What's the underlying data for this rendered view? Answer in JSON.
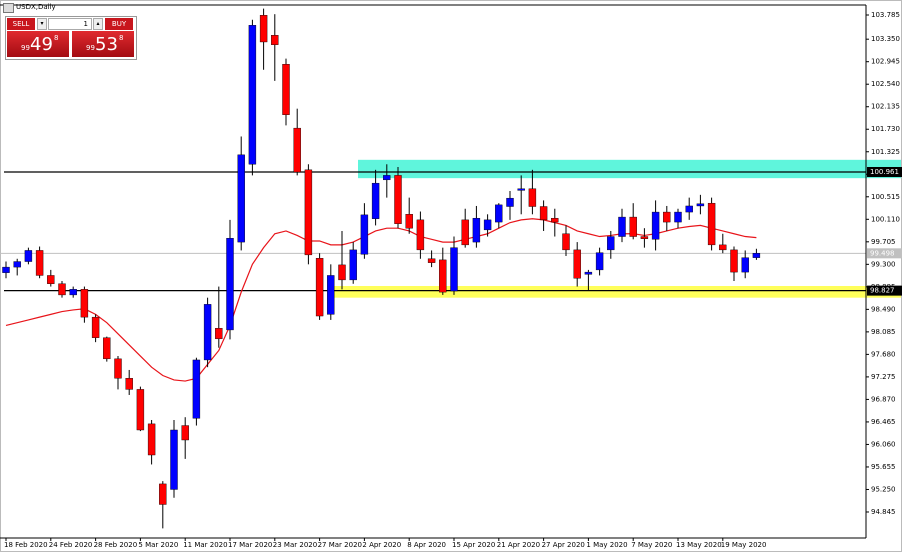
{
  "chart_data": {
    "type": "candlestick",
    "widget": {
      "title": "USDX,Daily",
      "sell": "SELL",
      "buy": "BUY",
      "volume": "1",
      "sell_price": [
        "99",
        "49",
        "8"
      ],
      "buy_price": [
        "99",
        "53",
        "8"
      ]
    },
    "categories": [
      "18 Feb 2020",
      null,
      null,
      null,
      "24 Feb 2020",
      null,
      null,
      null,
      "28 Feb 2020",
      null,
      null,
      null,
      "5 Mar 2020",
      null,
      null,
      null,
      "11 Mar 2020",
      null,
      null,
      null,
      "17 Mar 2020",
      null,
      null,
      null,
      "23 Mar 2020",
      null,
      null,
      null,
      "27 Mar 2020",
      null,
      null,
      null,
      "2 Apr 2020",
      null,
      null,
      null,
      "8 Apr 2020",
      null,
      null,
      null,
      "15 Apr 2020",
      null,
      null,
      null,
      "21 Apr 2020",
      null,
      null,
      null,
      "27 Apr 2020",
      null,
      null,
      null,
      "1 May 2020",
      null,
      null,
      null,
      "7 May 2020",
      null,
      null,
      null,
      "13 May 2020",
      null,
      null,
      null,
      "19 May 2020",
      null,
      null,
      null
    ],
    "open": [
      99.15,
      99.25,
      99.35,
      99.55,
      99.1,
      98.95,
      98.75,
      98.85,
      98.35,
      97.98,
      97.6,
      97.25,
      97.05,
      96.43,
      95.35,
      95.25,
      96.4,
      96.53,
      97.58,
      98.15,
      98.12,
      99.7,
      101.1,
      103.78,
      103.42,
      102.9,
      101.75,
      101.0,
      99.41,
      98.4,
      99.29,
      99.02,
      99.48,
      100.12,
      100.82,
      100.9,
      100.2,
      100.1,
      99.4,
      99.38,
      98.82,
      100.1,
      99.7,
      99.92,
      100.06,
      100.34,
      100.63,
      100.66,
      100.34,
      100.13,
      99.85,
      99.56,
      99.12,
      99.2,
      99.56,
      99.8,
      100.15,
      99.8,
      99.75,
      100.24,
      100.06,
      100.24,
      100.35,
      100.4,
      99.65,
      99.56,
      99.16,
      99.42
    ],
    "high": [
      99.35,
      99.4,
      99.6,
      99.62,
      99.2,
      99.0,
      98.9,
      98.9,
      98.4,
      98.0,
      97.65,
      97.4,
      97.1,
      96.5,
      95.4,
      96.5,
      96.55,
      97.62,
      98.7,
      98.9,
      100.1,
      101.6,
      103.7,
      103.9,
      103.8,
      103.0,
      102.1,
      101.1,
      99.5,
      99.3,
      99.9,
      99.7,
      100.4,
      101.0,
      101.1,
      101.05,
      100.5,
      100.25,
      99.55,
      99.6,
      99.8,
      100.3,
      100.35,
      100.2,
      100.4,
      100.62,
      100.9,
      101.0,
      100.45,
      100.3,
      100.0,
      99.7,
      99.2,
      99.6,
      99.9,
      100.3,
      100.4,
      99.95,
      100.45,
      100.35,
      100.3,
      100.5,
      100.55,
      100.5,
      99.85,
      99.62,
      99.55,
      99.58
    ],
    "low": [
      99.05,
      99.1,
      99.3,
      99.05,
      98.9,
      98.7,
      98.7,
      98.25,
      97.9,
      97.55,
      97.05,
      96.95,
      96.3,
      95.7,
      94.55,
      95.1,
      95.8,
      96.4,
      97.45,
      97.8,
      97.95,
      99.55,
      100.9,
      102.8,
      102.6,
      101.8,
      100.9,
      99.3,
      98.3,
      98.3,
      98.85,
      98.95,
      99.4,
      100.0,
      100.5,
      99.95,
      99.85,
      99.4,
      99.25,
      98.75,
      98.75,
      99.6,
      99.6,
      99.8,
      99.95,
      100.1,
      100.2,
      100.2,
      99.9,
      99.8,
      99.45,
      98.9,
      98.82,
      99.1,
      99.4,
      99.7,
      99.75,
      99.6,
      99.55,
      99.9,
      99.95,
      100.1,
      100.2,
      99.55,
      99.5,
      99.0,
      99.05,
      99.38
    ],
    "close": [
      99.25,
      99.35,
      99.55,
      99.1,
      98.95,
      98.75,
      98.85,
      98.35,
      97.98,
      97.6,
      97.25,
      97.05,
      96.32,
      95.87,
      94.98,
      96.32,
      96.14,
      97.58,
      98.58,
      97.96,
      99.77,
      101.27,
      103.6,
      103.3,
      103.25,
      101.99,
      100.96,
      99.47,
      98.37,
      99.1,
      99.02,
      99.56,
      100.19,
      100.76,
      100.9,
      100.03,
      99.95,
      99.56,
      99.33,
      98.8,
      99.6,
      99.65,
      100.13,
      100.1,
      100.37,
      100.49,
      100.66,
      100.34,
      100.1,
      100.06,
      99.56,
      99.05,
      99.16,
      99.51,
      99.8,
      100.15,
      99.8,
      99.76,
      100.24,
      100.06,
      100.24,
      100.35,
      100.39,
      99.65,
      99.56,
      99.16,
      99.42,
      99.5
    ],
    "ma": [
      98.2,
      98.25,
      98.3,
      98.35,
      98.4,
      98.45,
      98.48,
      98.5,
      98.4,
      98.25,
      98.05,
      97.85,
      97.65,
      97.45,
      97.3,
      97.22,
      97.2,
      97.25,
      97.5,
      97.75,
      98.2,
      98.8,
      99.3,
      99.6,
      99.85,
      99.9,
      99.82,
      99.72,
      99.72,
      99.65,
      99.65,
      99.7,
      99.8,
      99.9,
      99.95,
      99.95,
      99.9,
      99.8,
      99.75,
      99.7,
      99.7,
      99.75,
      99.8,
      99.85,
      99.95,
      100.05,
      100.1,
      100.12,
      100.1,
      100.05,
      100.0,
      99.9,
      99.85,
      99.8,
      99.82,
      99.85,
      99.85,
      99.82,
      99.85,
      99.9,
      99.95,
      99.98,
      100.0,
      99.95,
      99.9,
      99.85,
      99.8,
      99.78
    ],
    "ma_color": "#e8141a",
    "up_color": "#0000ff",
    "down_color": "#ff0000",
    "levels": [
      100.961,
      98.827
    ],
    "last": 99.498,
    "zones": [
      {
        "from": 100.85,
        "to": 101.18,
        "color": "#5ff5dc"
      },
      {
        "from": 98.7,
        "to": 98.91,
        "color": "#ffff5a"
      }
    ],
    "ylim": [
      94.377,
      103.965
    ],
    "yticks": [
      103.785,
      {
        "value": 103.35,
        "label": "103.350"
      },
      102.945,
      {
        "value": 102.54,
        "label": "102.540"
      },
      102.135,
      {
        "value": 101.73,
        "label": "101.730"
      },
      101.325,
      {
        "value": 100.92,
        "label": "100.920"
      },
      100.515,
      {
        "value": 100.11,
        "label": "100.110"
      },
      99.705,
      {
        "value": 99.3,
        "label": "99.300"
      },
      98.895,
      {
        "value": 98.49,
        "label": "98.490"
      },
      98.085,
      {
        "value": 97.68,
        "label": "97.680"
      },
      97.275,
      {
        "value": 96.87,
        "label": "96.870"
      },
      96.465,
      {
        "value": 96.06,
        "label": "96.060"
      },
      95.655,
      {
        "value": 95.25,
        "label": "95.250"
      },
      94.845
    ]
  }
}
